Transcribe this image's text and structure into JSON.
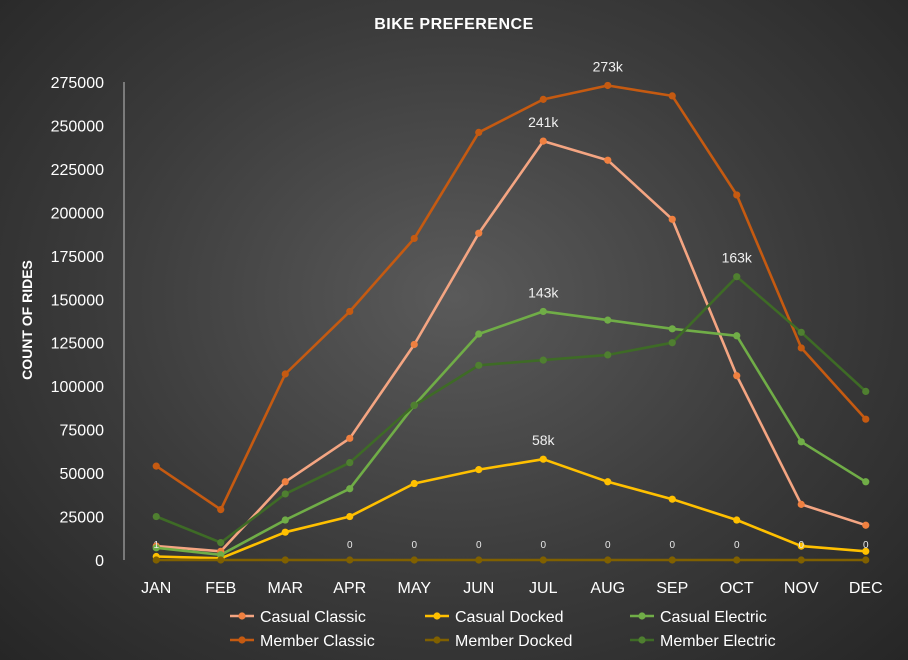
{
  "chart_data": {
    "type": "line",
    "title": "BIKE PREFERENCE",
    "xlabel": "",
    "ylabel": "COUNT OF RIDES",
    "categories": [
      "JAN",
      "FEB",
      "MAR",
      "APR",
      "MAY",
      "JUN",
      "JUL",
      "AUG",
      "SEP",
      "OCT",
      "NOV",
      "DEC"
    ],
    "ylim": [
      0,
      275000
    ],
    "yticks": [
      0,
      25000,
      50000,
      75000,
      100000,
      125000,
      150000,
      175000,
      200000,
      225000,
      250000,
      275000
    ],
    "grid": false,
    "legend_position": "bottom",
    "series": [
      {
        "name": "Casual Classic",
        "color": "#f4a582",
        "marker_color": "#f08040",
        "values": [
          8000,
          5000,
          45000,
          70000,
          124000,
          188000,
          241000,
          230000,
          196000,
          106000,
          32000,
          20000
        ]
      },
      {
        "name": "Casual Docked",
        "color": "#ffc000",
        "marker_color": "#ffc000",
        "values": [
          2000,
          1000,
          16000,
          25000,
          44000,
          52000,
          58000,
          45000,
          35000,
          23000,
          8000,
          5000
        ]
      },
      {
        "name": "Casual Electric",
        "color": "#70ad47",
        "marker_color": "#70ad47",
        "values": [
          7000,
          3000,
          23000,
          41000,
          89000,
          130000,
          143000,
          138000,
          133000,
          129000,
          68000,
          45000
        ]
      },
      {
        "name": "Member Classic",
        "color": "#c55a11",
        "marker_color": "#c55a11",
        "values": [
          54000,
          29000,
          107000,
          143000,
          185000,
          246000,
          265000,
          273000,
          267000,
          210000,
          122000,
          81000
        ]
      },
      {
        "name": "Member Docked",
        "color": "#806000",
        "marker_color": "#806000",
        "values": [
          0,
          0,
          0,
          0,
          0,
          0,
          0,
          0,
          0,
          0,
          0,
          0
        ]
      },
      {
        "name": "Member Electric",
        "color": "#3e6b26",
        "marker_color": "#4f7f30",
        "values": [
          25000,
          10000,
          38000,
          56000,
          89000,
          112000,
          115000,
          118000,
          125000,
          163000,
          131000,
          97000
        ]
      }
    ],
    "data_labels": [
      {
        "text": "273k",
        "series": 3,
        "index": 7
      },
      {
        "text": "241k",
        "series": 0,
        "index": 6
      },
      {
        "text": "163k",
        "series": 5,
        "index": 9
      },
      {
        "text": "143k",
        "series": 2,
        "index": 6
      },
      {
        "text": "58k",
        "series": 1,
        "index": 6
      }
    ],
    "small_labels": {
      "series": 4,
      "values": [
        "1",
        "",
        "",
        "0",
        "0",
        "0",
        "0",
        "0",
        "0",
        "0",
        "0",
        "0"
      ]
    }
  }
}
